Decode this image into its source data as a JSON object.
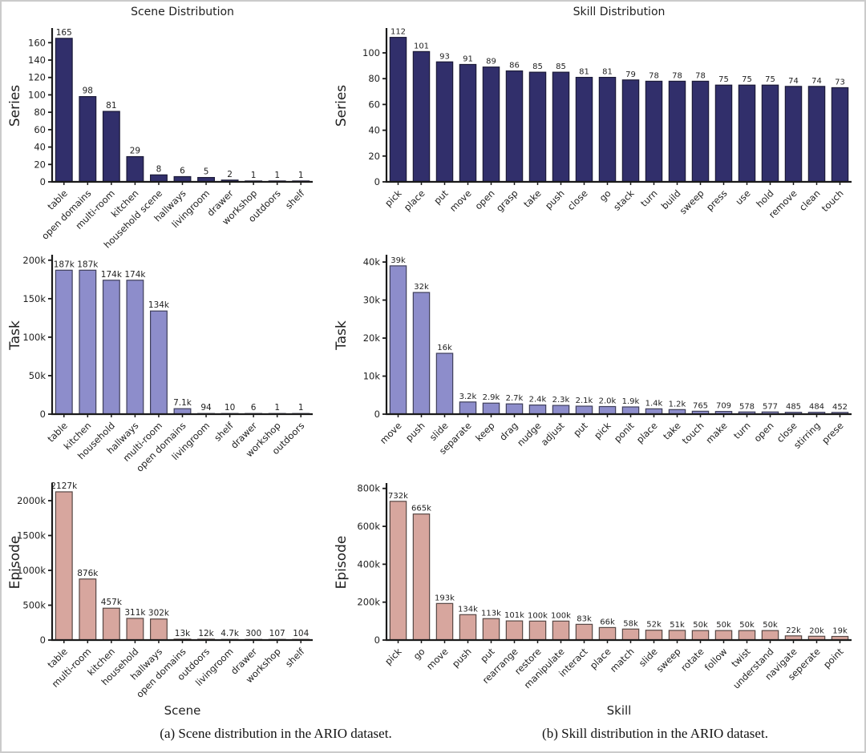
{
  "figure": {
    "captions": {
      "a": "(a) Scene distribution in the ARIO dataset.",
      "b": "(b) Skill distribution in the ARIO dataset."
    }
  },
  "colors": {
    "series_bar": "#312f6b",
    "series_bar_edge": "#1b1a38",
    "task_bar": "#8d8dcb",
    "task_bar_edge": "#3f3f5a",
    "episode_bar": "#d7a69e",
    "episode_bar_edge": "#574744",
    "axis": "#1a1a1a",
    "text": "#1f1f1f",
    "frame_border": "#cbcbcb"
  },
  "chart_data": [
    {
      "type": "bar",
      "title": "Scene Distribution",
      "ylabel": "Series",
      "xlabel": "",
      "categories": [
        "table",
        "open domains",
        "multi-room",
        "kitchen",
        "household scene",
        "hallways",
        "livingroom",
        "drawer",
        "workshop",
        "outdoors",
        "shelf"
      ],
      "values": [
        165,
        98,
        81,
        29,
        8,
        6,
        5,
        2,
        1,
        1,
        1
      ],
      "value_labels": [
        "165",
        "98",
        "81",
        "29",
        "8",
        "6",
        "5",
        "2",
        "1",
        "1",
        "1"
      ],
      "ytick_values": [
        0,
        20,
        40,
        60,
        80,
        100,
        120,
        140,
        160
      ],
      "ytick_labels": [
        "0",
        "20",
        "40",
        "60",
        "80",
        "100",
        "120",
        "140",
        "160"
      ],
      "ylim": [
        0,
        175
      ],
      "grid": false,
      "legend": null,
      "bar_color": "#312f6b",
      "bar_edge_color": "#1b1a38"
    },
    {
      "type": "bar",
      "title": "Skill Distribution",
      "ylabel": "Series",
      "xlabel": "",
      "categories": [
        "pick",
        "place",
        "put",
        "move",
        "open",
        "grasp",
        "take",
        "push",
        "close",
        "go",
        "stack",
        "turn",
        "build",
        "sweep",
        "press",
        "use",
        "hold",
        "remove",
        "clean",
        "touch"
      ],
      "values": [
        112,
        101,
        93,
        91,
        89,
        86,
        85,
        85,
        81,
        81,
        79,
        78,
        78,
        78,
        75,
        75,
        75,
        74,
        74,
        73
      ],
      "value_labels": [
        "112",
        "101",
        "93",
        "91",
        "89",
        "86",
        "85",
        "85",
        "81",
        "81",
        "79",
        "78",
        "78",
        "78",
        "75",
        "75",
        "75",
        "74",
        "74",
        "73"
      ],
      "ytick_values": [
        0,
        20,
        40,
        60,
        80,
        100
      ],
      "ytick_labels": [
        "0",
        "20",
        "40",
        "60",
        "80",
        "100"
      ],
      "ylim": [
        0,
        118
      ],
      "grid": false,
      "legend": null,
      "bar_color": "#312f6b",
      "bar_edge_color": "#1b1a38"
    },
    {
      "type": "bar",
      "title": "",
      "ylabel": "Task",
      "xlabel": "",
      "categories": [
        "table",
        "kitchen",
        "household",
        "hallways",
        "multi-room",
        "open domains",
        "livingroom",
        "shelf",
        "drawer",
        "workshop",
        "outdoors"
      ],
      "values": [
        187000,
        187000,
        174000,
        174000,
        134000,
        7100,
        94,
        10,
        6,
        1,
        1
      ],
      "value_labels": [
        "187k",
        "187k",
        "174k",
        "174k",
        "134k",
        "7.1k",
        "94",
        "10",
        "6",
        "1",
        "1"
      ],
      "ytick_values": [
        0,
        50000,
        100000,
        150000,
        200000
      ],
      "ytick_labels": [
        "0",
        "50k",
        "100k",
        "150k",
        "200k"
      ],
      "ylim": [
        0,
        205000
      ],
      "grid": false,
      "legend": null,
      "bar_color": "#8d8dcb",
      "bar_edge_color": "#3f3f5a"
    },
    {
      "type": "bar",
      "title": "",
      "ylabel": "Task",
      "xlabel": "",
      "categories": [
        "move",
        "push",
        "slide",
        "separate",
        "keep",
        "drag",
        "nudge",
        "adjust",
        "put",
        "pick",
        "ponit",
        "place",
        "take",
        "touch",
        "make",
        "turn",
        "open",
        "close",
        "stirring",
        "prese"
      ],
      "values": [
        39000,
        32000,
        16000,
        3200,
        2900,
        2700,
        2400,
        2300,
        2100,
        2000,
        1900,
        1400,
        1200,
        765,
        709,
        578,
        577,
        485,
        484,
        452
      ],
      "value_labels": [
        "39k",
        "32k",
        "16k",
        "3.2k",
        "2.9k",
        "2.7k",
        "2.4k",
        "2.3k",
        "2.1k",
        "2.0k",
        "1.9k",
        "1.4k",
        "1.2k",
        "765",
        "709",
        "578",
        "577",
        "485",
        "484",
        "452"
      ],
      "ytick_values": [
        0,
        10000,
        20000,
        30000,
        40000
      ],
      "ytick_labels": [
        "0",
        "10k",
        "20k",
        "30k",
        "40k"
      ],
      "ylim": [
        0,
        41500
      ],
      "grid": false,
      "legend": null,
      "bar_color": "#8d8dcb",
      "bar_edge_color": "#3f3f5a"
    },
    {
      "type": "bar",
      "title": "",
      "ylabel": "Episode",
      "xlabel": "Scene",
      "categories": [
        "table",
        "multi-room",
        "kitchen",
        "household",
        "hallways",
        "open domains",
        "outdoors",
        "livingroom",
        "drawer",
        "workshop",
        "shelf"
      ],
      "values": [
        2127000,
        876000,
        457000,
        311000,
        302000,
        13000,
        12000,
        4700,
        300,
        107,
        104
      ],
      "value_labels": [
        "2127k",
        "876k",
        "457k",
        "311k",
        "302k",
        "13k",
        "12k",
        "4.7k",
        "300",
        "107",
        "104"
      ],
      "ytick_values": [
        0,
        500000,
        1000000,
        1500000,
        2000000
      ],
      "ytick_labels": [
        "0",
        "500k",
        "1000k",
        "1500k",
        "2000k"
      ],
      "ylim": [
        0,
        2230000
      ],
      "grid": false,
      "legend": null,
      "bar_color": "#d7a69e",
      "bar_edge_color": "#574744"
    },
    {
      "type": "bar",
      "title": "",
      "ylabel": "Episode",
      "xlabel": "Skill",
      "categories": [
        "pick",
        "go",
        "move",
        "push",
        "put",
        "rearrange",
        "restore",
        "manipulate",
        "interact",
        "place",
        "match",
        "slide",
        "sweep",
        "rotate",
        "follow",
        "twist",
        "understand",
        "navigate",
        "seperate",
        "point"
      ],
      "values": [
        732000,
        665000,
        193000,
        134000,
        113000,
        101000,
        100000,
        100000,
        83000,
        66000,
        58000,
        52000,
        51000,
        50000,
        50000,
        50000,
        50000,
        22000,
        20000,
        19000
      ],
      "value_labels": [
        "732k",
        "665k",
        "193k",
        "134k",
        "113k",
        "101k",
        "100k",
        "100k",
        "83k",
        "66k",
        "58k",
        "52k",
        "51k",
        "50k",
        "50k",
        "50k",
        "50k",
        "22k",
        "20k",
        "19k"
      ],
      "ytick_values": [
        0,
        200000,
        400000,
        600000,
        800000
      ],
      "ytick_labels": [
        "0",
        "200k",
        "400k",
        "600k",
        "800k"
      ],
      "ylim": [
        0,
        820000
      ],
      "grid": false,
      "legend": null,
      "bar_color": "#d7a69e",
      "bar_edge_color": "#574744"
    }
  ]
}
